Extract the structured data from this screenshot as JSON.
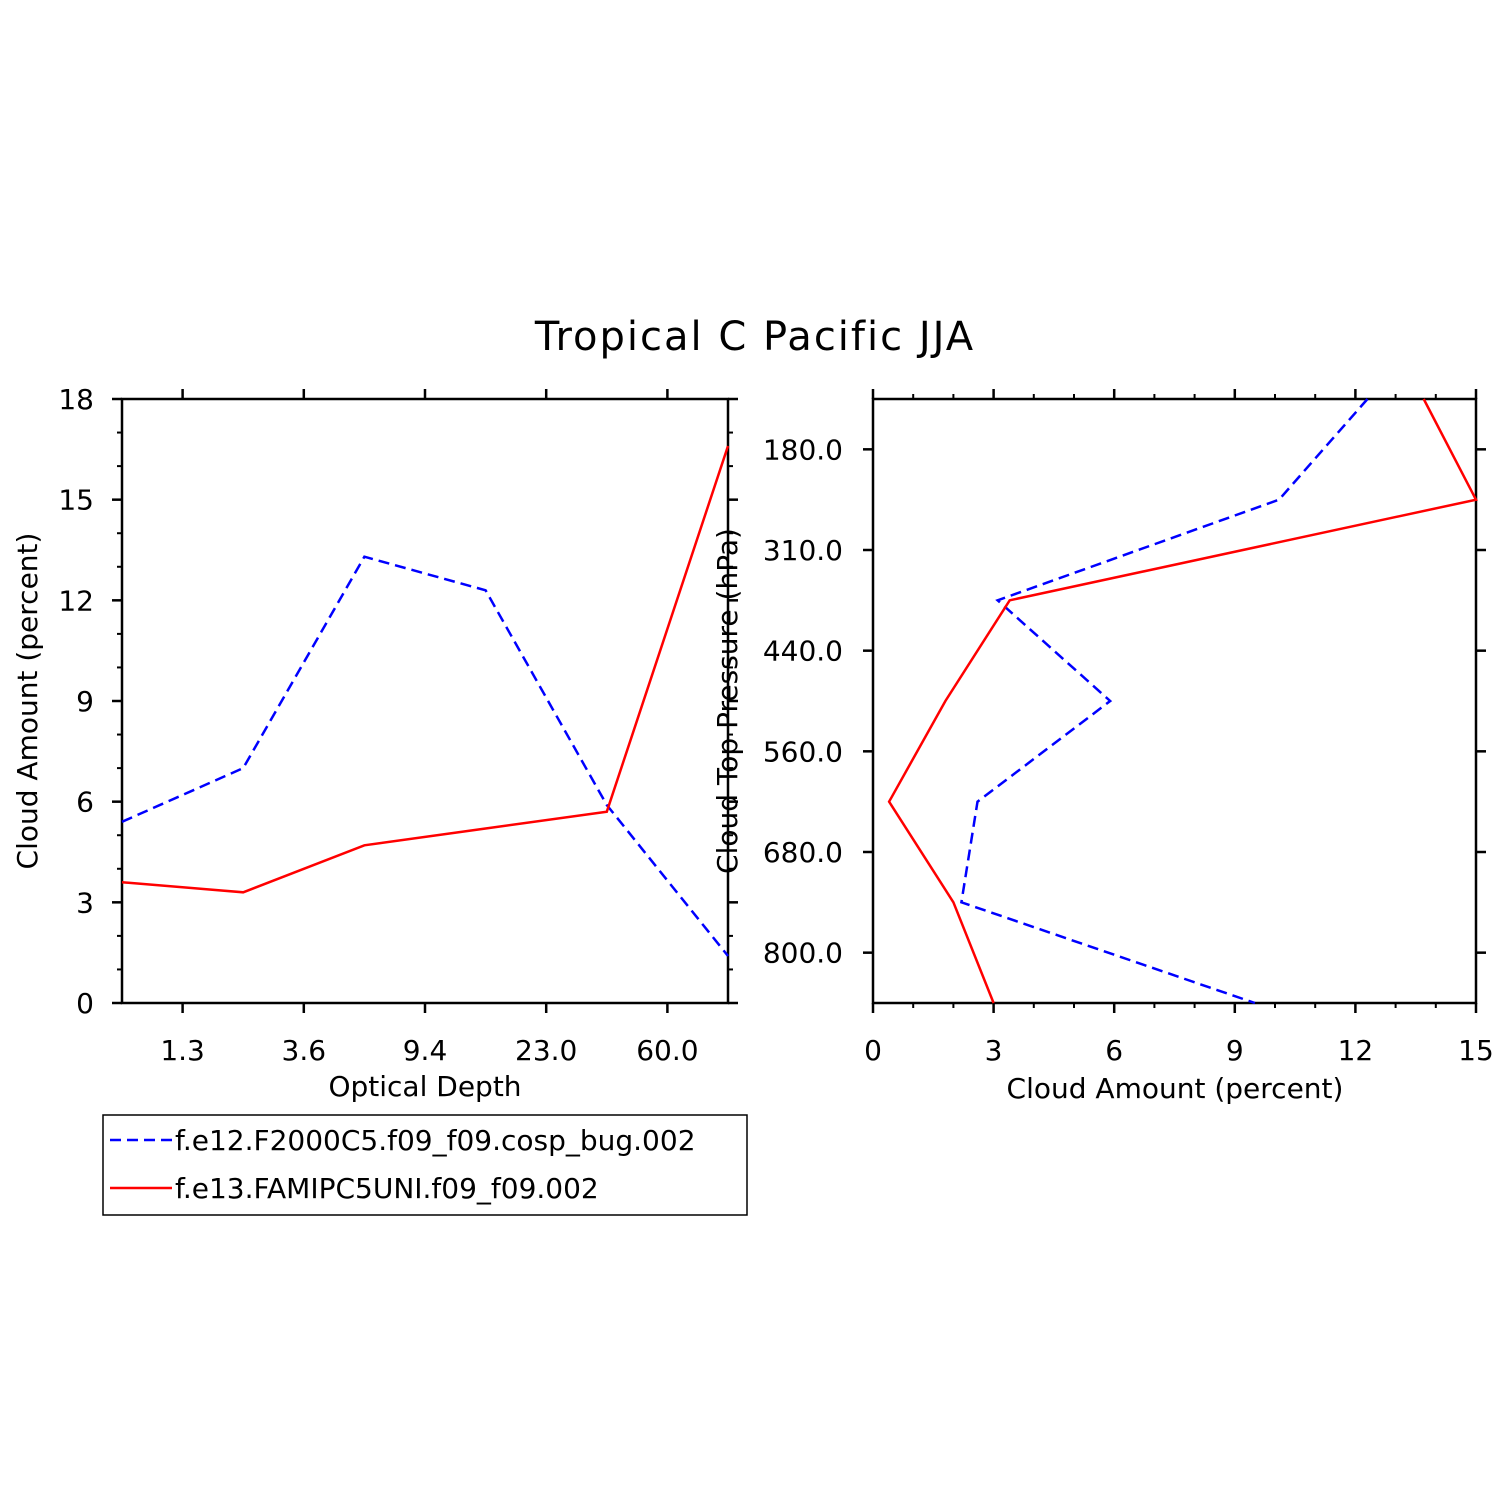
{
  "title": "Tropical C Pacific JJA",
  "colors": {
    "series1": "#0000ff",
    "series2": "#ff0000",
    "axis": "#000000"
  },
  "legend": {
    "placement": "bottom-left",
    "entries": [
      {
        "label": "f.e12.F2000C5.f09_f09.cosp_bug.002",
        "color": "#0000ff",
        "style": "dashed"
      },
      {
        "label": "f.e13.FAMIPC5UNI.f09_f09.002",
        "color": "#ff0000",
        "style": "solid"
      }
    ]
  },
  "chart_data": [
    {
      "type": "line",
      "xlabel": "Optical Depth",
      "ylabel": "Cloud Amount (percent)",
      "ylim": [
        0,
        18
      ],
      "yticks": [
        "0",
        "3",
        "6",
        "9",
        "12",
        "15",
        "18"
      ],
      "xticks": [
        "1.3",
        "3.6",
        "9.4",
        "23.0",
        "60.0"
      ],
      "x_index": [
        0,
        1,
        2,
        3,
        4,
        5
      ],
      "series": [
        {
          "name": "f.e12.F2000C5.f09_f09.cosp_bug.002",
          "style": "dashed",
          "values": [
            5.4,
            7.0,
            13.3,
            12.3,
            5.9,
            1.4
          ]
        },
        {
          "name": "f.e13.FAMIPC5UNI.f09_f09.002",
          "style": "solid",
          "values": [
            3.6,
            3.3,
            4.7,
            5.2,
            5.7,
            16.6
          ]
        }
      ],
      "grid": false
    },
    {
      "type": "line",
      "xlabel": "Cloud Amount (percent)",
      "ylabel": "Cloud Top Pressure (hPa)",
      "xlim": [
        0,
        15
      ],
      "xticks": [
        "0",
        "3",
        "6",
        "9",
        "12",
        "15"
      ],
      "yticks": [
        "180.0",
        "310.0",
        "440.0",
        "560.0",
        "680.0",
        "800.0"
      ],
      "y_inverted": true,
      "level_index": [
        0,
        1,
        2,
        3,
        4,
        5,
        6
      ],
      "series": [
        {
          "name": "f.e12.F2000C5.f09_f09.cosp_bug.002",
          "style": "dashed",
          "values": [
            12.3,
            10.1,
            3.1,
            5.9,
            2.6,
            2.2,
            9.5
          ]
        },
        {
          "name": "f.e13.FAMIPC5UNI.f09_f09.002",
          "style": "solid",
          "values": [
            13.7,
            15.0,
            3.4,
            1.8,
            0.4,
            2.0,
            3.0
          ]
        }
      ],
      "grid": false
    }
  ]
}
